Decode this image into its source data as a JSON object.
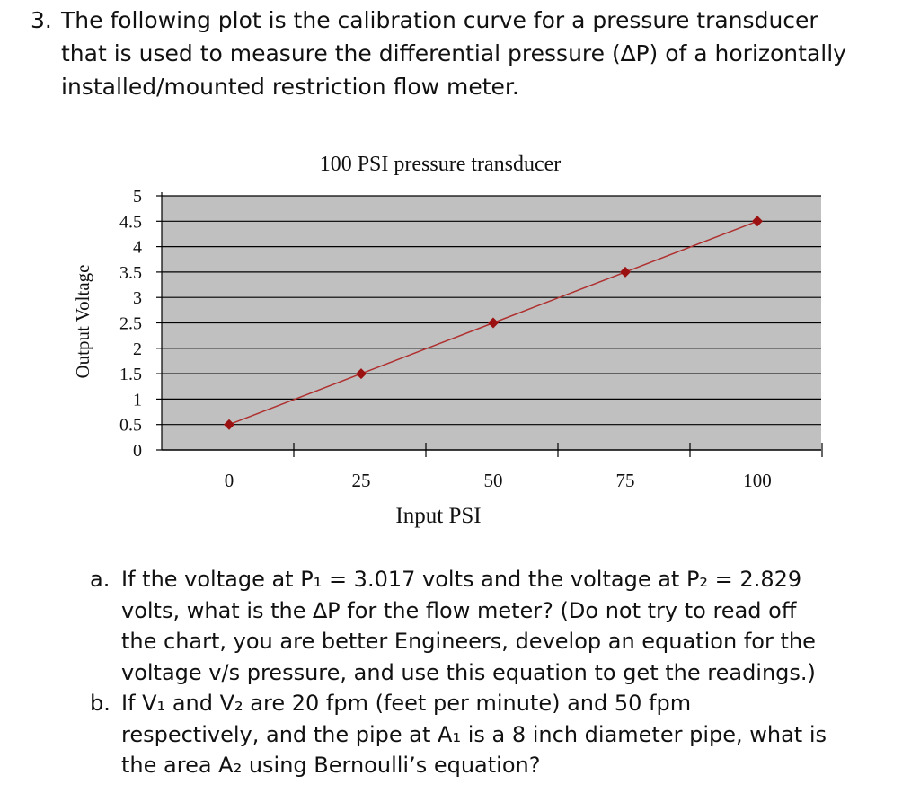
{
  "question": {
    "number": "3.",
    "lines": [
      "The following plot is the calibration curve for a pressure transducer",
      "that is used to measure the differential pressure (∆P) of a horizontally",
      "installed/mounted restriction flow meter."
    ]
  },
  "chart_data": {
    "type": "line",
    "title": "100 PSI pressure transducer",
    "xlabel": "Input PSI",
    "ylabel": "Output Voltage",
    "x": [
      0,
      25,
      50,
      75,
      100
    ],
    "xticks": [
      "0",
      "25",
      "50",
      "75",
      "100"
    ],
    "yticks": [
      "0",
      "0.5",
      "1",
      "1.5",
      "2",
      "2.5",
      "3",
      "3.5",
      "4",
      "4.5",
      "5"
    ],
    "ylim": [
      0,
      5
    ],
    "grid": true,
    "series": [
      {
        "values": [
          0.5,
          1.5,
          2.5,
          3.5,
          4.5
        ]
      }
    ],
    "colors": {
      "plot_bg": "#c0c0c0",
      "line": "#b03030",
      "marker": "#9b1111",
      "grid": "#000000"
    }
  },
  "parts": [
    {
      "letter": "a.",
      "lines": [
        "If the voltage at P₁ = 3.017 volts and the voltage at P₂ = 2.829",
        "volts, what is the ∆P for the flow meter? (Do not try to read off",
        "the chart, you are better Engineers, develop an equation for the",
        "voltage v/s pressure, and use this equation to get the readings.)"
      ]
    },
    {
      "letter": "b.",
      "lines": [
        "If V₁ and V₂ are 20 fpm (feet per minute) and 50 fpm",
        "respectively, and the pipe at A₁ is a 8 inch diameter pipe, what is",
        "the area A₂ using Bernoulli’s equation?"
      ]
    }
  ]
}
